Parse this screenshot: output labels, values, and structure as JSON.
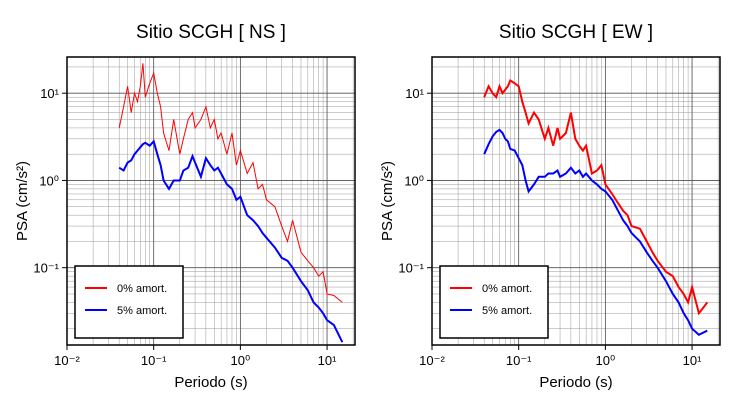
{
  "chart_data": [
    {
      "type": "line",
      "title": "Sitio SCGH [ NS ]",
      "x_label": "Periodo (s)",
      "y_label": "PSA (cm/s²)",
      "log_x": true,
      "log_y": true,
      "grid": true,
      "legend": "lower left",
      "xlim": [
        0.01,
        21
      ],
      "ylim": [
        0.013,
        26
      ],
      "xticks": [
        {
          "value": 0.01,
          "label": "10⁻²"
        },
        {
          "value": 0.1,
          "label": "10⁻¹"
        },
        {
          "value": 1,
          "label": "10⁰"
        },
        {
          "value": 10,
          "label": "10¹"
        }
      ],
      "yticks": [
        {
          "value": 0.1,
          "label": "10⁻¹"
        },
        {
          "value": 1,
          "label": "10⁰"
        },
        {
          "value": 10,
          "label": "10¹"
        }
      ],
      "x": [
        0.04,
        0.045,
        0.05,
        0.055,
        0.06,
        0.065,
        0.07,
        0.075,
        0.08,
        0.09,
        0.1,
        0.11,
        0.12,
        0.13,
        0.15,
        0.17,
        0.2,
        0.22,
        0.25,
        0.28,
        0.3,
        0.35,
        0.4,
        0.45,
        0.5,
        0.55,
        0.6,
        0.7,
        0.8,
        0.9,
        1.0,
        1.2,
        1.4,
        1.6,
        1.8,
        2.0,
        2.5,
        3,
        3.5,
        4,
        5,
        6,
        7,
        8,
        9,
        10,
        12,
        15
      ],
      "series": [
        {
          "name": "0% amort.",
          "color": "#ff0000",
          "width": 1,
          "values": [
            4,
            7,
            12,
            6,
            10,
            8,
            12,
            22,
            9,
            13,
            17,
            10,
            7,
            3.5,
            2.2,
            5,
            2,
            3,
            5,
            6,
            4,
            5,
            7,
            4,
            5,
            3,
            3.5,
            2,
            3.5,
            1.5,
            2.2,
            1.2,
            1.6,
            0.8,
            0.9,
            0.6,
            0.5,
            0.3,
            0.2,
            0.35,
            0.15,
            0.12,
            0.1,
            0.08,
            0.09,
            0.05,
            0.048,
            0.04
          ]
        },
        {
          "name": "5% amort.",
          "color": "#0000ff",
          "width": 2,
          "values": [
            1.4,
            1.3,
            1.6,
            1.7,
            2.0,
            2.2,
            2.4,
            2.6,
            2.7,
            2.5,
            2.8,
            2.0,
            1.5,
            1.0,
            0.8,
            1.0,
            1.0,
            1.3,
            1.4,
            1.9,
            1.6,
            1.1,
            1.8,
            1.5,
            1.3,
            1.4,
            1.2,
            0.9,
            0.8,
            0.6,
            0.65,
            0.4,
            0.35,
            0.3,
            0.25,
            0.22,
            0.17,
            0.13,
            0.12,
            0.1,
            0.07,
            0.055,
            0.04,
            0.035,
            0.03,
            0.025,
            0.022,
            0.014
          ]
        }
      ]
    },
    {
      "type": "line",
      "title": "Sitio SCGH [ EW ]",
      "x_label": "Periodo (s)",
      "y_label": "PSA (cm/s²)",
      "log_x": true,
      "log_y": true,
      "grid": true,
      "legend": "lower left",
      "xlim": [
        0.01,
        21
      ],
      "ylim": [
        0.013,
        26
      ],
      "xticks": [
        {
          "value": 0.01,
          "label": "10⁻²"
        },
        {
          "value": 0.1,
          "label": "10⁻¹"
        },
        {
          "value": 1,
          "label": "10⁰"
        },
        {
          "value": 10,
          "label": "10¹"
        }
      ],
      "yticks": [
        {
          "value": 0.1,
          "label": "10⁻¹"
        },
        {
          "value": 1,
          "label": "10⁰"
        },
        {
          "value": 10,
          "label": "10¹"
        }
      ],
      "x": [
        0.04,
        0.045,
        0.05,
        0.055,
        0.06,
        0.065,
        0.07,
        0.075,
        0.08,
        0.09,
        0.1,
        0.11,
        0.12,
        0.13,
        0.15,
        0.17,
        0.2,
        0.22,
        0.25,
        0.28,
        0.3,
        0.35,
        0.4,
        0.45,
        0.5,
        0.55,
        0.6,
        0.7,
        0.8,
        0.9,
        1.0,
        1.2,
        1.4,
        1.6,
        1.8,
        2.0,
        2.5,
        3,
        3.5,
        4,
        5,
        6,
        7,
        8,
        9,
        10,
        12,
        15
      ],
      "series": [
        {
          "name": "0% amort.",
          "color": "#ff0000",
          "width": 2,
          "values": [
            9,
            12,
            10,
            9,
            12,
            10,
            11,
            12,
            14,
            13,
            12,
            8,
            6,
            4.5,
            6,
            5,
            3,
            4,
            2.5,
            4,
            3,
            3.5,
            6,
            3,
            2.5,
            2.2,
            2.5,
            1.2,
            1.3,
            1.5,
            0.9,
            0.7,
            0.55,
            0.45,
            0.4,
            0.3,
            0.28,
            0.2,
            0.15,
            0.12,
            0.09,
            0.08,
            0.06,
            0.05,
            0.04,
            0.06,
            0.03,
            0.04
          ]
        },
        {
          "name": "5% amort.",
          "color": "#0000ff",
          "width": 2,
          "values": [
            2.0,
            2.6,
            3.2,
            3.6,
            3.8,
            3.5,
            3.0,
            2.8,
            2.3,
            2.2,
            1.8,
            1.5,
            1.0,
            0.75,
            0.9,
            1.1,
            1.1,
            1.2,
            1.2,
            1.3,
            1.1,
            1.2,
            1.4,
            1.2,
            1.3,
            1.1,
            1.2,
            1.0,
            0.9,
            0.8,
            0.75,
            0.6,
            0.45,
            0.35,
            0.3,
            0.25,
            0.2,
            0.15,
            0.12,
            0.1,
            0.07,
            0.05,
            0.04,
            0.03,
            0.025,
            0.02,
            0.017,
            0.019
          ]
        }
      ]
    }
  ]
}
